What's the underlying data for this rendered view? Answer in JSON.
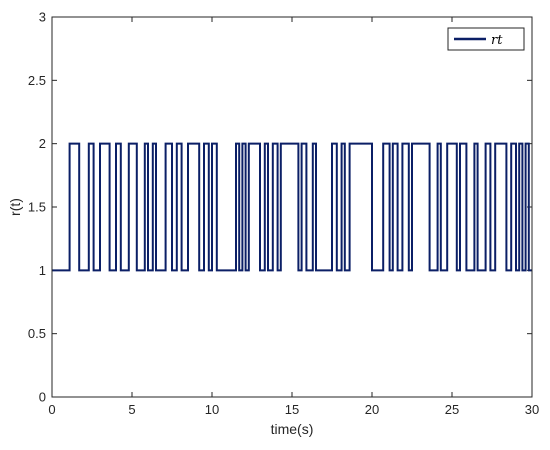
{
  "chart_data": {
    "type": "line",
    "title": "",
    "xlabel": "time(s)",
    "ylabel": "r(t)",
    "xlim": [
      0,
      30
    ],
    "ylim": [
      0,
      3
    ],
    "xticks": [
      "0",
      "5",
      "10",
      "15",
      "20",
      "25",
      "30"
    ],
    "yticks": [
      "0",
      "0.5",
      "1",
      "1.5",
      "2",
      "2.5",
      "3"
    ],
    "grid": false,
    "box": true,
    "legend_position": "top-right",
    "series": [
      {
        "name": "rt",
        "color": "#0b1f66",
        "step": true,
        "x": [
          0,
          1.1,
          1.7,
          2.3,
          2.6,
          3.0,
          3.6,
          4.0,
          4.3,
          4.8,
          5.3,
          5.8,
          6.0,
          6.3,
          6.5,
          7.1,
          7.5,
          7.8,
          8.1,
          8.5,
          9.2,
          9.5,
          9.8,
          10.0,
          10.3,
          11.5,
          11.7,
          11.9,
          12.1,
          12.3,
          13.0,
          13.3,
          13.5,
          13.8,
          14.1,
          14.3,
          15.4,
          15.6,
          15.9,
          16.3,
          16.5,
          17.5,
          17.8,
          18.1,
          18.3,
          18.6,
          20.0,
          20.7,
          21.1,
          21.3,
          21.6,
          21.9,
          22.3,
          22.5,
          23.6,
          24.1,
          24.3,
          24.7,
          25.3,
          25.5,
          25.9,
          26.4,
          26.6,
          27.1,
          27.4,
          27.7,
          28.4,
          28.7,
          29.0,
          29.2,
          29.4,
          29.6,
          29.8,
          30
        ]
      }
    ]
  }
}
